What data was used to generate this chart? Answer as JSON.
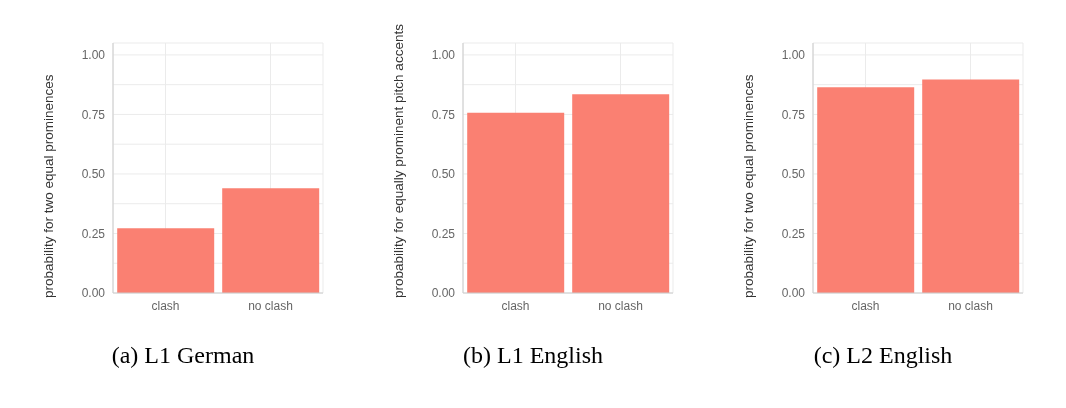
{
  "chart_data": [
    {
      "type": "bar",
      "title": "(a) L1 German",
      "ylabel": "probability for two equal prominences",
      "categories": [
        "clash",
        "no clash"
      ],
      "values": [
        0.272,
        0.44
      ],
      "color": "#fa8072",
      "ylim": [
        0,
        1.05
      ],
      "yticks": [
        {
          "value": 0,
          "label": "0.00"
        },
        {
          "value": 0.125,
          "label": null
        },
        {
          "value": 0.25,
          "label": "0.25"
        },
        {
          "value": 0.375,
          "label": null
        },
        {
          "value": 0.5,
          "label": "0.50"
        },
        {
          "value": 0.625,
          "label": null
        },
        {
          "value": 0.75,
          "label": "0.75"
        },
        {
          "value": 0.875,
          "label": null
        },
        {
          "value": 1,
          "label": "1.00"
        }
      ],
      "grid": true
    },
    {
      "type": "bar",
      "title": "(b) L1 English",
      "ylabel": "probability for equally prominent pitch accents",
      "categories": [
        "clash",
        "no clash"
      ],
      "values": [
        0.757,
        0.835
      ],
      "color": "#fa8072",
      "ylim": [
        0,
        1.05
      ],
      "yticks": [
        {
          "value": 0,
          "label": "0.00"
        },
        {
          "value": 0.125,
          "label": null
        },
        {
          "value": 0.25,
          "label": "0.25"
        },
        {
          "value": 0.375,
          "label": null
        },
        {
          "value": 0.5,
          "label": "0.50"
        },
        {
          "value": 0.625,
          "label": null
        },
        {
          "value": 0.75,
          "label": "0.75"
        },
        {
          "value": 0.875,
          "label": null
        },
        {
          "value": 1,
          "label": "1.00"
        }
      ],
      "grid": true
    },
    {
      "type": "bar",
      "title": "(c) L2 English",
      "ylabel": "probability for two equal prominences",
      "categories": [
        "clash",
        "no clash"
      ],
      "values": [
        0.864,
        0.897
      ],
      "color": "#fa8072",
      "ylim": [
        0,
        1.05
      ],
      "yticks": [
        {
          "value": 0,
          "label": "0.00"
        },
        {
          "value": 0.125,
          "label": null
        },
        {
          "value": 0.25,
          "label": "0.25"
        },
        {
          "value": 0.375,
          "label": null
        },
        {
          "value": 0.5,
          "label": "0.50"
        },
        {
          "value": 0.625,
          "label": null
        },
        {
          "value": 0.75,
          "label": "0.75"
        },
        {
          "value": 0.875,
          "label": null
        },
        {
          "value": 1,
          "label": "1.00"
        }
      ],
      "grid": true
    }
  ]
}
